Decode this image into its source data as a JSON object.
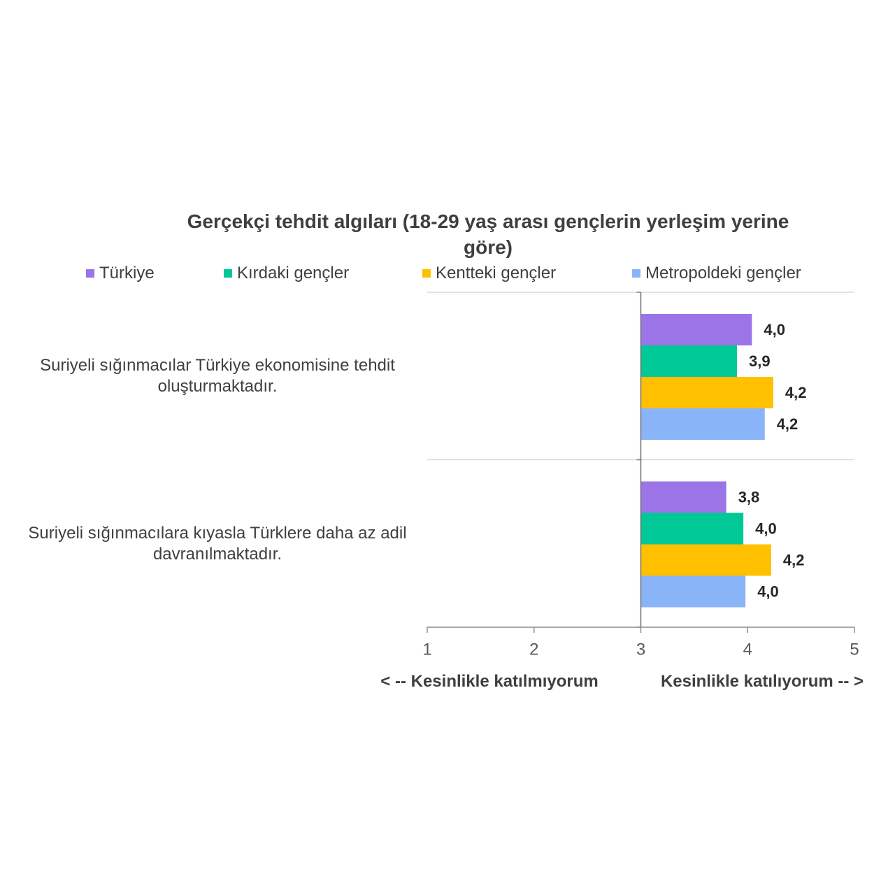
{
  "chart_data": {
    "type": "bar",
    "orientation": "horizontal",
    "title": "Gerçekçi tehdit algıları (18-29 yaş arası gençlerin yerleşim yerine göre)",
    "categories": [
      "Suriyeli sığınmacılar Türkiye ekonomisine tehdit oluşturmaktadır.",
      "Suriyeli sığınmacılara kıyasla Türklere daha az adil davranılmaktadır."
    ],
    "series": [
      {
        "name": "Türkiye",
        "color": "#9b75e8",
        "values": [
          4.04,
          3.8
        ],
        "labels": [
          "4,0",
          "3,8"
        ]
      },
      {
        "name": "Kırdaki gençler",
        "color": "#00c896",
        "values": [
          3.9,
          3.96
        ],
        "labels": [
          "3,9",
          "4,0"
        ]
      },
      {
        "name": "Kentteki gençler",
        "color": "#ffc000",
        "values": [
          4.24,
          4.22
        ],
        "labels": [
          "4,2",
          "4,2"
        ]
      },
      {
        "name": "Metropoldeki gençler",
        "color": "#8ab4f8",
        "values": [
          4.16,
          3.98
        ],
        "labels": [
          "4,2",
          "4,0"
        ]
      }
    ],
    "xlim": [
      1,
      5
    ],
    "xticks": [
      1,
      2,
      3,
      4,
      5
    ],
    "bar_origin": 3,
    "xlabel_left": "< -- Kesinlikle katılmıyorum",
    "xlabel_right": "Kesinlikle katılıyorum -- >",
    "legend": "top",
    "category_gridlines": true,
    "value_gridlines": false
  }
}
